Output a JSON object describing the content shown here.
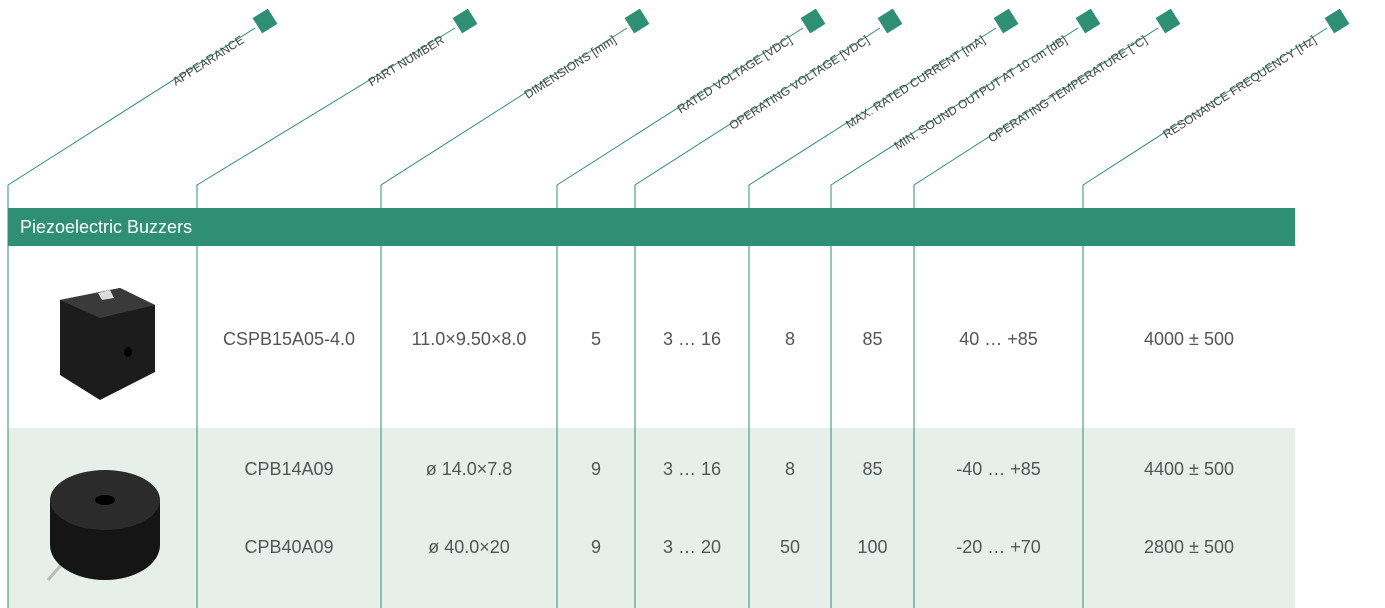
{
  "header": {
    "columns": [
      "APPEARANCE",
      "PART NUMBER",
      "DIMENSIONS [mm]",
      "RATED VOLTAGE [VDC]",
      "OPERATING VOLTAGE [VDC]",
      "MAX. RATED CURRENT [mA]",
      "MIN. SOUND OUTPUT AT 10 cm [dB]",
      "OPERATING TEMPERATURE [°C]",
      "RESONANCE FREQUENCY [Hz]"
    ]
  },
  "section": {
    "title": "Piezoelectric Buzzers"
  },
  "table": {
    "rows": [
      [
        "CSPB15A05-4.0",
        "11.0×9.50×8.0",
        "5",
        "3 … 16",
        "8",
        "85",
        "40 … +85",
        "4000 ± 500"
      ],
      [
        "CPB14A09",
        "ø 14.0×7.8",
        "9",
        "3 … 16",
        "8",
        "85",
        "-40 … +85",
        "4400 ± 500"
      ],
      [
        "CPB40A09",
        "ø 40.0×20",
        "9",
        "3 … 20",
        "50",
        "100",
        "-20  … +70",
        "2800 ± 500"
      ]
    ]
  }
}
